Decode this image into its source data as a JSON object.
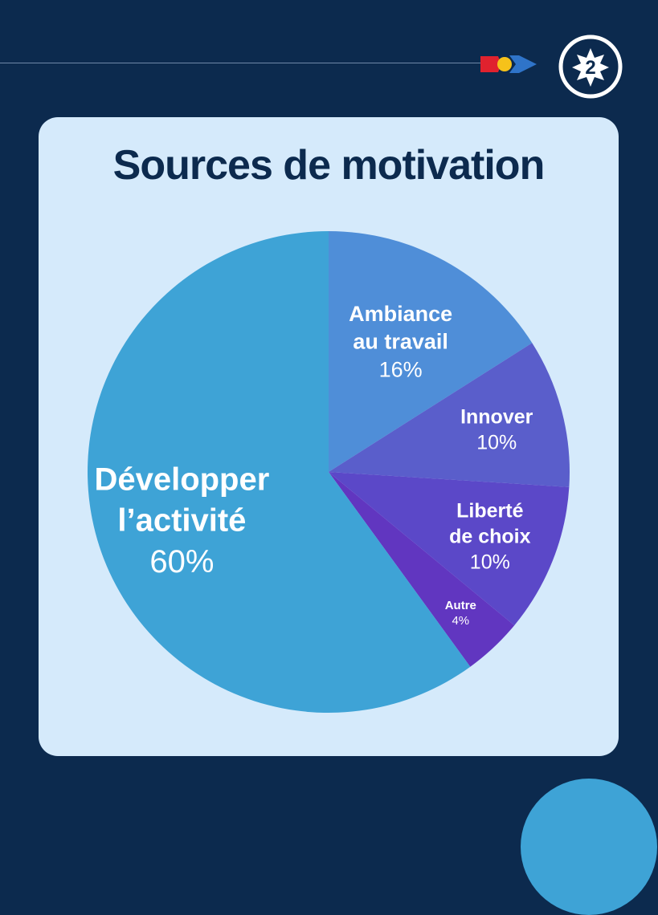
{
  "page_number": "2",
  "colors": {
    "background": "#0c2a4e",
    "card": "#d5eafb",
    "title": "#0c2a4e",
    "accent": "#3ea3d6"
  },
  "chart_data": {
    "type": "pie",
    "title": "Sources de motivation",
    "start_angle_deg": 0,
    "direction": "clockwise",
    "slices": [
      {
        "label": "Ambiance au travail",
        "label_lines": [
          "Ambiance",
          "au travail"
        ],
        "value": 16,
        "value_text": "16%",
        "color": "#4f8ed8"
      },
      {
        "label": "Innover",
        "label_lines": [
          "Innover"
        ],
        "value": 10,
        "value_text": "10%",
        "color": "#5a5ecb"
      },
      {
        "label": "Liberté de choix",
        "label_lines": [
          "Liberté",
          "de choix"
        ],
        "value": 10,
        "value_text": "10%",
        "color": "#5b48c8"
      },
      {
        "label": "Autre",
        "label_lines": [
          "Autre"
        ],
        "value": 4,
        "value_text": "4%",
        "color": "#6136c0"
      },
      {
        "label": "Développer l’activité",
        "label_lines": [
          "Développer",
          "l’activité"
        ],
        "value": 60,
        "value_text": "60%",
        "color": "#3ea3d6"
      }
    ]
  }
}
